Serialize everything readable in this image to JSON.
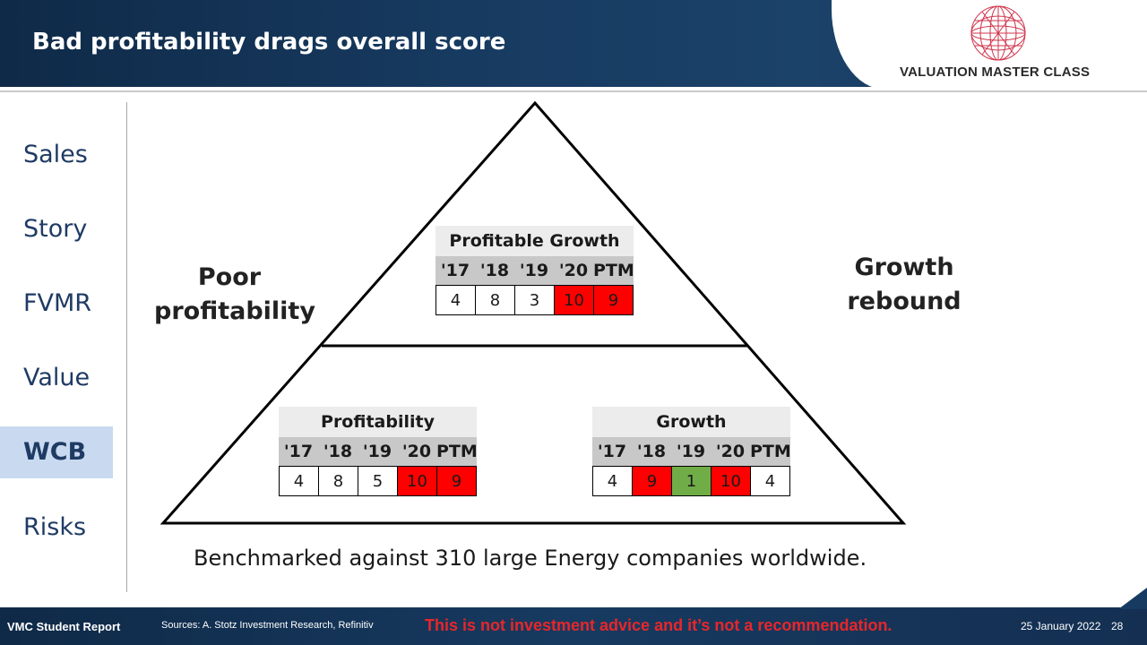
{
  "header": {
    "title": "Bad profitability drags overall score",
    "logo_text": "VALUATION MASTER CLASS"
  },
  "sidebar": {
    "items": [
      {
        "label": "Sales",
        "active": false
      },
      {
        "label": "Story",
        "active": false
      },
      {
        "label": "FVMR",
        "active": false
      },
      {
        "label": "Value",
        "active": false
      },
      {
        "label": "WCB",
        "active": true
      },
      {
        "label": "Risks",
        "active": false
      }
    ]
  },
  "labels": {
    "left": [
      "Poor",
      "profitability"
    ],
    "right": [
      "Growth",
      "rebound"
    ]
  },
  "tables": {
    "profitable_growth": {
      "title": "Profitable Growth",
      "headers": [
        "'17",
        "'18",
        "'19",
        "'20",
        "PTM"
      ],
      "scores": [
        "4",
        "8",
        "3",
        "10",
        "9"
      ],
      "cell_colors": [
        "#ffffff",
        "#ffffff",
        "#ffffff",
        "#ff0000",
        "#ff0000"
      ]
    },
    "profitability": {
      "title": "Profitability",
      "headers": [
        "'17",
        "'18",
        "'19",
        "'20",
        "PTM"
      ],
      "scores": [
        "4",
        "8",
        "5",
        "10",
        "9"
      ],
      "cell_colors": [
        "#ffffff",
        "#ffffff",
        "#ffffff",
        "#ff0000",
        "#ff0000"
      ]
    },
    "growth": {
      "title": "Growth",
      "headers": [
        "'17",
        "'18",
        "'19",
        "'20",
        "PTM"
      ],
      "scores": [
        "4",
        "9",
        "1",
        "10",
        "4"
      ],
      "cell_colors": [
        "#ffffff",
        "#ff0000",
        "#70ad47",
        "#ff0000",
        "#ffffff"
      ]
    }
  },
  "benchmark": "Benchmarked against 310 large Energy companies worldwide.",
  "footer": {
    "report": "VMC Student Report",
    "sources": "Sources: A. Stotz Investment Research, Refinitiv",
    "disclaimer": "This is not investment advice and it’s not a recommendation.",
    "date": "25 January 2022",
    "page": "28"
  },
  "colors": {
    "navy": "#173a60",
    "accent_red": "#e8262a",
    "active_tab": "#c9daf0"
  }
}
